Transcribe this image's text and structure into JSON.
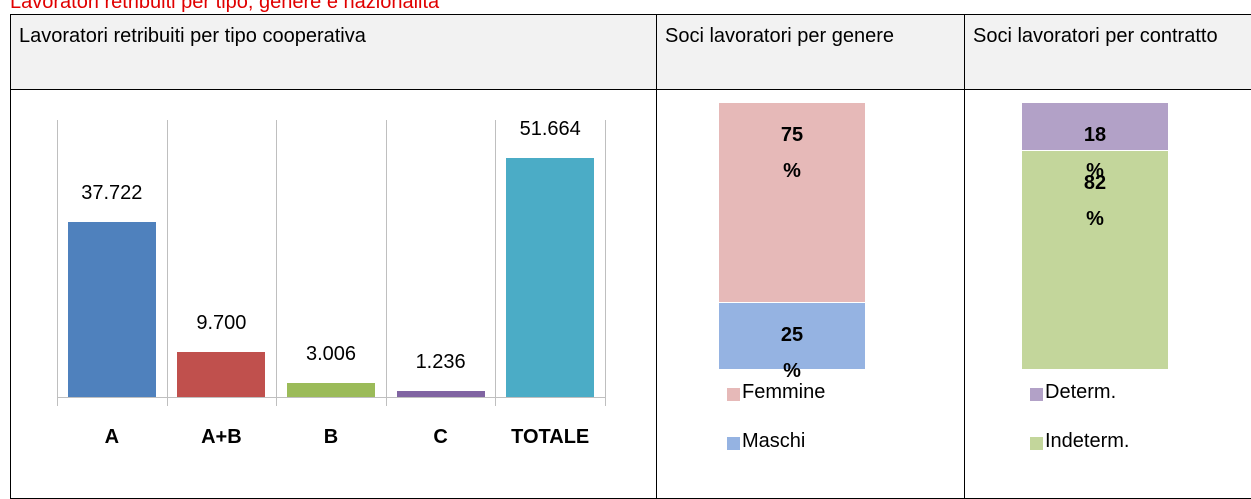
{
  "caption": "Lavoratori retribuiti per tipo, genere e nazionalità",
  "headers": [
    "Lavoratori retribuiti per tipo cooperativa",
    "Soci lavoratori per genere",
    "Soci lavoratori per contratto"
  ],
  "chart_data": [
    {
      "type": "bar",
      "categories": [
        "A",
        "A+B",
        "B",
        "C",
        "TOTALE"
      ],
      "values": [
        37722,
        9700,
        3006,
        1236,
        51664
      ],
      "value_labels": [
        "37.722",
        "9.700",
        "3.006",
        "1.236",
        "51.664"
      ],
      "colors": [
        "#4f81bd",
        "#c0504d",
        "#9bbb59",
        "#8064a2",
        "#4bacc6"
      ],
      "ylim": [
        0,
        60000
      ]
    },
    {
      "type": "stacked_bar",
      "series": [
        {
          "name": "Maschi",
          "color": "#95b3e2",
          "values": [
            25
          ],
          "value_labels": [
            "25 %"
          ]
        },
        {
          "name": "Femmine",
          "color": "#e6b9b8",
          "values": [
            75
          ],
          "value_labels": [
            "75 %"
          ]
        }
      ],
      "ylim": [
        0,
        100
      ]
    },
    {
      "type": "stacked_bar",
      "series": [
        {
          "name": "Indeterm.",
          "color": "#c3d69b",
          "values": [
            82
          ],
          "value_labels": [
            "82 %"
          ]
        },
        {
          "name": "Determ.",
          "color": "#b2a1c7",
          "values": [
            18
          ],
          "value_labels": [
            "18 %"
          ]
        }
      ],
      "ylim": [
        0,
        100
      ]
    }
  ]
}
